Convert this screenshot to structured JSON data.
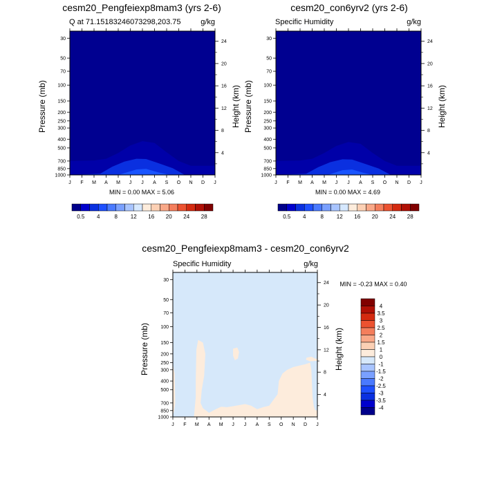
{
  "chart_data": [
    {
      "type": "contour",
      "title": "cesm20_Pengfeiexp8mam3 (yrs 2-6)",
      "subtitle_left": "Q at 71.15183246073298,203.75",
      "subtitle_right": "g/kg",
      "ylabel": "Pressure (mb)",
      "ylabel_right": "Height (km)",
      "x_ticks": [
        "J",
        "F",
        "M",
        "A",
        "M",
        "J",
        "J",
        "A",
        "S",
        "O",
        "N",
        "D",
        "J"
      ],
      "pressure_ticks": [
        "30",
        "50",
        "70",
        "100",
        "150",
        "200",
        "250",
        "300",
        "400",
        "500",
        "700",
        "850",
        "1000"
      ],
      "pressure_values": [
        30,
        50,
        70,
        100,
        150,
        200,
        250,
        300,
        400,
        500,
        700,
        850,
        1000
      ],
      "height_ticks": [
        "4",
        "8",
        "12",
        "16",
        "20",
        "24"
      ],
      "height_values": [
        4,
        8,
        12,
        16,
        20,
        24
      ],
      "stats": "MIN =   0.00 MAX =   5.06",
      "colorbar": {
        "labels": [
          "0.5",
          "4",
          "8",
          "12",
          "16",
          "20",
          "24",
          "28"
        ],
        "colors": [
          "#00008b",
          "#0000cd",
          "#0a30e0",
          "#1e50ff",
          "#4a7aff",
          "#7aa0ff",
          "#a8c4ff",
          "#d6e8ff",
          "#fdecdc",
          "#fcd0b4",
          "#f9a888",
          "#f47e5c",
          "#ec5230",
          "#d42a10",
          "#b01006",
          "#800000"
        ]
      },
      "contours": [
        {
          "level": 0.5,
          "color": "#0000a8",
          "profile": [
            [
              0,
              700
            ],
            [
              2,
              690
            ],
            [
              3,
              660
            ],
            [
              4,
              570
            ],
            [
              5,
              470
            ],
            [
              6,
              420
            ],
            [
              7,
              440
            ],
            [
              8,
              560
            ],
            [
              9,
              700
            ],
            [
              10,
              790
            ],
            [
              11,
              790
            ],
            [
              12,
              790
            ]
          ]
        },
        {
          "level": 1.5,
          "color": "#0a30e0",
          "profile": [
            [
              0,
              1000
            ],
            [
              2.5,
              970
            ],
            [
              3.5,
              810
            ],
            [
              4.5,
              710
            ],
            [
              5.5,
              660
            ],
            [
              6.3,
              665
            ],
            [
              7.2,
              730
            ],
            [
              8.5,
              840
            ],
            [
              9.5,
              1000
            ]
          ]
        },
        {
          "level": 3,
          "color": "#1a55ff",
          "profile": [
            [
              4,
              1000
            ],
            [
              5.5,
              870
            ],
            [
              6.3,
              855
            ],
            [
              7.3,
              935
            ],
            [
              8.3,
              1000
            ]
          ]
        }
      ]
    },
    {
      "type": "contour",
      "title": "cesm20_con6yrv2 (yrs 2-6)",
      "subtitle_left": "Specific Humidity",
      "subtitle_right": "g/kg",
      "ylabel": "Pressure (mb)",
      "ylabel_right": "Height (km)",
      "x_ticks": [
        "J",
        "F",
        "M",
        "A",
        "M",
        "J",
        "J",
        "A",
        "S",
        "O",
        "N",
        "D",
        "J"
      ],
      "pressure_ticks": [
        "30",
        "50",
        "70",
        "100",
        "150",
        "200",
        "250",
        "300",
        "400",
        "500",
        "700",
        "850",
        "1000"
      ],
      "pressure_values": [
        30,
        50,
        70,
        100,
        150,
        200,
        250,
        300,
        400,
        500,
        700,
        850,
        1000
      ],
      "height_ticks": [
        "4",
        "8",
        "12",
        "16",
        "20",
        "24"
      ],
      "height_values": [
        4,
        8,
        12,
        16,
        20,
        24
      ],
      "stats": "MIN =   0.00 MAX =   4.69",
      "colorbar": {
        "labels": [
          "0.5",
          "4",
          "8",
          "12",
          "16",
          "20",
          "24",
          "28"
        ],
        "colors": [
          "#00008b",
          "#0000cd",
          "#0a30e0",
          "#1e50ff",
          "#4a7aff",
          "#7aa0ff",
          "#a8c4ff",
          "#d6e8ff",
          "#fdecdc",
          "#fcd0b4",
          "#f9a888",
          "#f47e5c",
          "#ec5230",
          "#d42a10",
          "#b01006",
          "#800000"
        ]
      },
      "contours": [
        {
          "level": 0.5,
          "color": "#0000a8",
          "profile": [
            [
              0,
              700
            ],
            [
              2,
              690
            ],
            [
              3,
              660
            ],
            [
              4,
              570
            ],
            [
              5,
              475
            ],
            [
              6,
              430
            ],
            [
              7,
              450
            ],
            [
              8,
              570
            ],
            [
              9,
              700
            ],
            [
              10,
              790
            ],
            [
              11,
              790
            ],
            [
              12,
              790
            ]
          ]
        },
        {
          "level": 1.5,
          "color": "#0a30e0",
          "profile": [
            [
              0,
              1000
            ],
            [
              2.5,
              970
            ],
            [
              3.5,
              820
            ],
            [
              4.5,
              720
            ],
            [
              5.5,
              670
            ],
            [
              6.3,
              675
            ],
            [
              7.2,
              740
            ],
            [
              8.5,
              850
            ],
            [
              9.5,
              1000
            ]
          ]
        },
        {
          "level": 3,
          "color": "#1a55ff",
          "profile": [
            [
              4.3,
              1000
            ],
            [
              5.5,
              885
            ],
            [
              6.3,
              870
            ],
            [
              7.2,
              945
            ],
            [
              8,
              1000
            ]
          ]
        }
      ]
    },
    {
      "type": "contour",
      "title": "cesm20_Pengfeiexp8mam3 - cesm20_con6yrv2",
      "subtitle_left": "Specific Humidity",
      "subtitle_right": "g/kg",
      "ylabel": "Pressure (mb)",
      "ylabel_right": "Height (km)",
      "x_ticks": [
        "J",
        "F",
        "M",
        "A",
        "M",
        "J",
        "J",
        "A",
        "S",
        "O",
        "N",
        "D",
        "J"
      ],
      "pressure_ticks": [
        "30",
        "50",
        "70",
        "100",
        "150",
        "200",
        "250",
        "300",
        "400",
        "500",
        "700",
        "850",
        "1000"
      ],
      "pressure_values": [
        30,
        50,
        70,
        100,
        150,
        200,
        250,
        300,
        400,
        500,
        700,
        850,
        1000
      ],
      "height_ticks": [
        "4",
        "8",
        "12",
        "16",
        "20",
        "24"
      ],
      "height_values": [
        4,
        8,
        12,
        16,
        20,
        24
      ],
      "stats": "MIN =  -0.23 MAX =   0.40",
      "background_color": "#d6e8fa",
      "colorbar": {
        "labels": [
          "4",
          "3.5",
          "3",
          "2.5",
          "2",
          "1.5",
          "1",
          "0",
          "-1",
          "-1.5",
          "-2",
          "-2.5",
          "-3",
          "-3.5",
          "-4"
        ],
        "colors": [
          "#800000",
          "#b01006",
          "#d42a10",
          "#ec5230",
          "#f47e5c",
          "#f9a888",
          "#fcd0b4",
          "#fdecdc",
          "#d6e8fa",
          "#a8c4ff",
          "#7aa0ff",
          "#4a7aff",
          "#1e50ff",
          "#0a30e0",
          "#0000cd",
          "#00008b"
        ]
      },
      "regions": [
        {
          "level": 0.05,
          "color": "#fdecdc",
          "points": [
            [
              0,
              260
            ],
            [
              0.15,
              330
            ],
            [
              0.2,
              700
            ],
            [
              0.1,
              870
            ],
            [
              0,
              950
            ]
          ]
        },
        {
          "level": 0.05,
          "color": "#fdecdc",
          "points": [
            [
              1.75,
              1000
            ],
            [
              1.9,
              600
            ],
            [
              1.9,
              400
            ],
            [
              1.95,
              180
            ],
            [
              2.1,
              140
            ],
            [
              2.5,
              150
            ],
            [
              2.7,
              200
            ],
            [
              2.6,
              350
            ],
            [
              2.4,
              500
            ],
            [
              2.3,
              700
            ],
            [
              2.5,
              800
            ],
            [
              3,
              900
            ],
            [
              3.5,
              830
            ],
            [
              4,
              770
            ],
            [
              4.5,
              780
            ],
            [
              5,
              760
            ],
            [
              6,
              720
            ],
            [
              6.5,
              750
            ],
            [
              7,
              820
            ],
            [
              7.5,
              780
            ],
            [
              8,
              750
            ],
            [
              8.3,
              660
            ],
            [
              8.7,
              560
            ],
            [
              8.8,
              400
            ],
            [
              9.1,
              330
            ],
            [
              9.5,
              300
            ],
            [
              10,
              280
            ],
            [
              10.5,
              270
            ],
            [
              11,
              260
            ],
            [
              11.4,
              250
            ],
            [
              11.5,
              300
            ],
            [
              11.6,
              600
            ],
            [
              11.7,
              760
            ],
            [
              11.8,
              840
            ],
            [
              12,
              850
            ],
            [
              12,
              1000
            ]
          ]
        },
        {
          "level": 0.05,
          "color": "#fdecdc",
          "points": [
            [
              5,
              175
            ],
            [
              5.35,
              170
            ],
            [
              5.5,
              190
            ],
            [
              5.4,
              225
            ],
            [
              5.15,
              235
            ],
            [
              5,
              210
            ]
          ]
        },
        {
          "level": 0.05,
          "color": "#fdecdc",
          "points": [
            [
              11.1,
              220
            ],
            [
              11.5,
              215
            ],
            [
              11.8,
              225
            ],
            [
              12,
              228
            ],
            [
              12,
              238
            ],
            [
              11.4,
              242
            ],
            [
              11.05,
              232
            ]
          ]
        }
      ]
    }
  ]
}
